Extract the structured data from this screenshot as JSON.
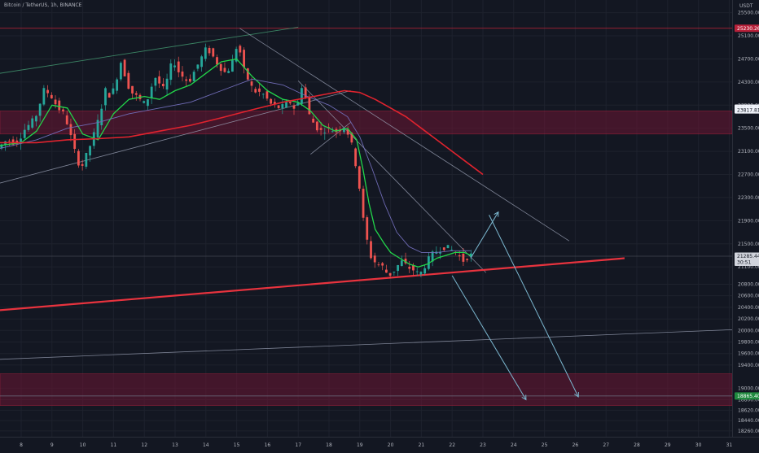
{
  "header": {
    "symbol": "Bitcoin / TetherUS, 1h, BINANCE"
  },
  "colors": {
    "background": "#131722",
    "up": "#26a69a",
    "down": "#ef5350",
    "ema_fast": "#22d64a",
    "ema_mid": "#6f6bb5",
    "ema_slow": "#e0232e",
    "support": "#e8333e",
    "zone": "#6b1533",
    "trend": "#9aa0b4",
    "channel": "#3f8f6a",
    "arrow": "#7bb7cf"
  },
  "chart_data": {
    "type": "line",
    "title": "",
    "xlabel": "",
    "ylabel": "",
    "quote_currency": "USDT",
    "x_ticks": [
      "8",
      "9",
      "10",
      "11",
      "12",
      "13",
      "14",
      "15",
      "16",
      "17",
      "18",
      "19",
      "20",
      "21",
      "22",
      "23",
      "24",
      "25",
      "26",
      "27",
      "28",
      "29",
      "30",
      "31"
    ],
    "y_ticks": [
      25500,
      25100,
      24700,
      24300,
      23900,
      23500,
      23100,
      22700,
      22300,
      21900,
      21500,
      21100,
      20800,
      20600,
      20400,
      20200,
      20000,
      19800,
      19600,
      19400,
      19000,
      18800,
      18620,
      18440,
      18260
    ],
    "ylim": [
      18160,
      25720
    ],
    "xlim": [
      7.3,
      31.4
    ],
    "price_badges": [
      {
        "label": "25230.26",
        "value": 25230.26,
        "kind": "level"
      },
      {
        "label": "23847.69",
        "value": 23847.69,
        "kind": "bid"
      },
      {
        "label": "23817.81",
        "value": 23817.81,
        "kind": "ask"
      },
      {
        "label": "21285.44",
        "value": 21285.44,
        "kind": "last"
      },
      {
        "label": "30:51",
        "value": 21180,
        "kind": "countdown"
      },
      {
        "label": "18865.40",
        "value": 18865.4,
        "kind": "target"
      }
    ],
    "zones": [
      {
        "from": 23400,
        "to": 23800
      },
      {
        "from": 18700,
        "to": 19250
      }
    ],
    "series": [
      {
        "kind": "price",
        "x": [
          7.3,
          7.6,
          7.9,
          8.2,
          8.5,
          8.8,
          9.0,
          9.2,
          9.5,
          9.8,
          10.0,
          10.2,
          10.5,
          10.8,
          11.0,
          11.3,
          11.6,
          11.9,
          12.1,
          12.4,
          12.7,
          13.0,
          13.2,
          13.5,
          13.8,
          14.1,
          14.4,
          14.7,
          14.9,
          15.1,
          15.3,
          15.6,
          15.9,
          16.2,
          16.5,
          16.8,
          17.0,
          17.2,
          17.4,
          17.6,
          17.8,
          18.0,
          18.3,
          18.6,
          18.8,
          19.0,
          19.2,
          19.4,
          19.6,
          19.8,
          20.0,
          20.2,
          20.4,
          20.6,
          20.8,
          21.0,
          21.2,
          21.4,
          21.6,
          21.8,
          22.0,
          22.2,
          22.4,
          22.6
        ],
        "y": [
          23150,
          23300,
          23250,
          23500,
          23650,
          24150,
          24100,
          23900,
          23700,
          23100,
          22800,
          23050,
          23500,
          24150,
          24050,
          24650,
          24150,
          24000,
          23900,
          24400,
          24150,
          24700,
          24450,
          24300,
          24600,
          24900,
          24650,
          24450,
          24600,
          25000,
          24500,
          24150,
          24100,
          23900,
          23850,
          23950,
          23800,
          24300,
          23750,
          23550,
          23450,
          23500,
          23450,
          23550,
          23200,
          22700,
          21800,
          21300,
          21150,
          21100,
          20950,
          21050,
          21200,
          21100,
          21050,
          20950,
          21150,
          21300,
          21400,
          21450,
          21400,
          21350,
          21200,
          21300
        ]
      },
      {
        "kind": "ema_fast",
        "x": [
          7.3,
          8.0,
          8.5,
          9.0,
          9.5,
          10.0,
          10.5,
          11.0,
          11.5,
          12.0,
          12.5,
          13.0,
          13.5,
          14.0,
          14.5,
          15.0,
          15.5,
          16.0,
          16.5,
          17.0,
          17.4,
          17.8,
          18.2,
          18.6,
          18.9,
          19.1,
          19.3,
          19.5,
          19.8,
          20.0,
          20.3,
          20.6,
          20.9,
          21.2,
          21.5,
          21.8,
          22.1,
          22.4,
          22.6
        ],
        "y": [
          23200,
          23250,
          23450,
          23900,
          23850,
          23400,
          23300,
          23750,
          24000,
          24050,
          24000,
          24150,
          24250,
          24450,
          24650,
          24700,
          24400,
          24150,
          24000,
          23950,
          23800,
          23550,
          23450,
          23500,
          23300,
          22800,
          22200,
          21750,
          21500,
          21350,
          21250,
          21150,
          21100,
          21150,
          21250,
          21300,
          21350,
          21350,
          21300
        ]
      },
      {
        "kind": "ema_mid",
        "x": [
          7.3,
          8.5,
          9.5,
          10.5,
          11.5,
          12.5,
          13.5,
          14.5,
          15.5,
          16.5,
          17.3,
          18.0,
          18.6,
          19.0,
          19.4,
          19.8,
          20.2,
          20.6,
          21.0,
          21.5,
          22.0,
          22.6
        ],
        "y": [
          23150,
          23300,
          23500,
          23600,
          23750,
          23850,
          23950,
          24150,
          24350,
          24250,
          24050,
          23900,
          23700,
          23350,
          22800,
          22200,
          21700,
          21450,
          21350,
          21350,
          21380,
          21380
        ]
      },
      {
        "kind": "ema_slow",
        "x": [
          7.3,
          8.5,
          9.5,
          10.5,
          11.5,
          12.5,
          13.5,
          14.5,
          15.5,
          16.5,
          17.5,
          18.5,
          19.0,
          19.5,
          20.0,
          20.5,
          21.0,
          21.5,
          22.0,
          22.5,
          23.0
        ],
        "y": [
          23250,
          23250,
          23300,
          23320,
          23350,
          23450,
          23550,
          23680,
          23820,
          23950,
          24050,
          24150,
          24120,
          24000,
          23850,
          23700,
          23500,
          23300,
          23100,
          22900,
          22700
        ]
      }
    ],
    "drawings": [
      {
        "kind": "channel",
        "points": [
          [
            7.3,
            24450
          ],
          [
            17.0,
            25250
          ]
        ]
      },
      {
        "kind": "trend",
        "points": [
          [
            7.3,
            22550
          ],
          [
            18.7,
            24150
          ]
        ]
      },
      {
        "kind": "trend",
        "points": [
          [
            15.1,
            25230
          ],
          [
            25.8,
            21550
          ]
        ]
      },
      {
        "kind": "trend",
        "points": [
          [
            17.0,
            24320
          ],
          [
            23.1,
            21000
          ]
        ]
      },
      {
        "kind": "trend",
        "points": [
          [
            17.4,
            23050
          ],
          [
            18.7,
            23600
          ]
        ]
      },
      {
        "kind": "trend",
        "points": [
          [
            7.3,
            19500
          ],
          [
            31.4,
            20020
          ]
        ]
      },
      {
        "kind": "support",
        "points": [
          [
            7.3,
            20350
          ],
          [
            27.6,
            21250
          ]
        ]
      },
      {
        "kind": "arrow",
        "points": [
          [
            22.6,
            21250
          ],
          [
            23.5,
            22050
          ]
        ]
      },
      {
        "kind": "arrow",
        "points": [
          [
            23.2,
            22000
          ],
          [
            26.1,
            18850
          ]
        ]
      },
      {
        "kind": "arrow",
        "points": [
          [
            22.0,
            20950
          ],
          [
            24.4,
            18800
          ]
        ]
      }
    ]
  }
}
